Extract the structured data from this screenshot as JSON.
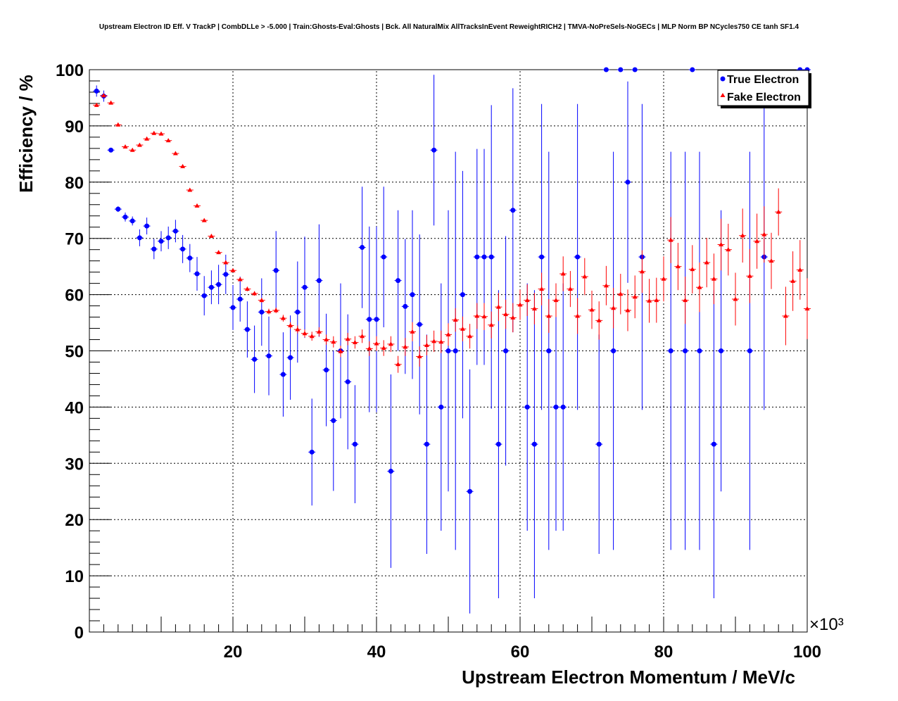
{
  "chart_data": {
    "type": "scatter",
    "title": "Upstream Electron ID Eff. V TrackP | CombDLLe > -5.000 | Train:Ghosts-Eval:Ghosts | Bck. All NaturalMix AllTracksInEvent ReweightRICH2 | TMVA-NoPreSels-NoGECs | MLP Norm BP NCycles750 CE tanh SF1.4",
    "xlabel": "Upstream Electron Momentum / MeV/c",
    "ylabel": "Efficiency / %",
    "x_multiplier_label": "×10³",
    "xlim": [
      0,
      100
    ],
    "ylim": [
      0,
      100
    ],
    "x_ticks": [
      20,
      40,
      60,
      80,
      100
    ],
    "y_ticks": [
      0,
      10,
      20,
      30,
      40,
      50,
      60,
      70,
      80,
      90,
      100
    ],
    "grid": true,
    "legend_position": "top-right",
    "colors": {
      "true_electron": "#0000ff",
      "fake_electron": "#ff0000"
    },
    "series": [
      {
        "name": "True Electron",
        "marker": "circle",
        "points": [
          [
            1,
            96.2,
            1
          ],
          [
            2,
            95.3,
            1
          ],
          [
            3,
            85.7,
            0
          ],
          [
            4,
            75.2,
            0.5
          ],
          [
            5,
            73.8,
            0.8
          ],
          [
            6,
            73.1,
            0.8
          ],
          [
            7,
            70.1,
            1.5
          ],
          [
            8,
            72.2,
            1.5
          ],
          [
            9,
            68.1,
            1.8
          ],
          [
            10,
            69.5,
            1.8
          ],
          [
            11,
            70.1,
            2
          ],
          [
            12,
            71.3,
            2
          ],
          [
            13,
            68.1,
            2.5
          ],
          [
            14,
            66.5,
            2.5
          ],
          [
            15,
            63.7,
            3
          ],
          [
            16,
            59.8,
            3.5
          ],
          [
            17,
            61.3,
            3
          ],
          [
            18,
            61.8,
            3.5
          ],
          [
            19,
            63.6,
            3.5
          ],
          [
            20,
            57.7,
            4
          ],
          [
            21,
            59.2,
            4
          ],
          [
            22,
            53.8,
            5
          ],
          [
            23,
            48.5,
            6
          ],
          [
            24,
            56.9,
            6
          ],
          [
            25,
            49.1,
            7
          ],
          [
            26,
            64.3,
            7
          ],
          [
            27,
            45.8,
            7.5
          ],
          [
            28,
            48.8,
            7.5
          ],
          [
            29,
            56.9,
            9
          ],
          [
            30,
            61.3,
            9
          ],
          [
            31,
            32.0,
            9.5
          ],
          [
            32,
            62.5,
            10
          ],
          [
            33,
            46.6,
            10
          ],
          [
            34,
            37.6,
            12.5
          ],
          [
            35,
            50.0,
            12
          ],
          [
            36,
            44.5,
            12
          ],
          [
            37,
            33.4,
            10.5
          ],
          [
            38,
            68.4,
            10.8
          ],
          [
            39,
            55.6,
            16.5
          ],
          [
            40,
            55.6,
            16.5
          ],
          [
            41,
            66.7,
            12.5
          ],
          [
            42,
            28.6,
            17.2
          ],
          [
            43,
            62.5,
            12.5
          ],
          [
            44,
            57.9,
            12
          ],
          [
            45,
            60.0,
            15
          ],
          [
            46,
            54.7,
            16
          ],
          [
            47,
            33.4,
            19.5
          ],
          [
            48,
            85.7,
            13.4
          ],
          [
            49,
            40.0,
            22
          ],
          [
            50,
            50.0,
            25
          ],
          [
            51,
            50.0,
            35.4
          ],
          [
            52,
            60.0,
            22
          ],
          [
            53,
            25.0,
            21.7
          ],
          [
            54,
            66.7,
            19.2
          ],
          [
            55,
            66.7,
            19.2
          ],
          [
            56,
            66.7,
            27
          ],
          [
            57,
            33.4,
            27.4
          ],
          [
            58,
            50.0,
            20.4
          ],
          [
            59,
            75.0,
            21.7
          ],
          [
            61,
            40.0,
            22
          ],
          [
            62,
            33.4,
            27.4
          ],
          [
            63,
            66.7,
            27.2
          ],
          [
            64,
            50.0,
            35.4
          ],
          [
            65,
            40.0,
            22
          ],
          [
            66,
            40.0,
            22
          ],
          [
            68,
            66.7,
            27.2
          ],
          [
            71,
            33.4,
            19.5
          ],
          [
            72,
            100,
            0
          ],
          [
            73,
            50.0,
            35.4
          ],
          [
            74,
            100,
            0
          ],
          [
            75,
            80.0,
            17.9
          ],
          [
            76,
            100,
            0
          ],
          [
            77,
            66.7,
            27.2
          ],
          [
            81,
            50.0,
            35.4
          ],
          [
            83,
            50.0,
            35.4
          ],
          [
            84,
            100,
            0
          ],
          [
            85,
            50.0,
            35.4
          ],
          [
            87,
            33.4,
            27.4
          ],
          [
            88,
            50.0,
            25
          ],
          [
            92,
            50.0,
            35.4
          ],
          [
            94,
            66.7,
            27.2
          ],
          [
            99,
            100,
            0
          ],
          [
            100,
            100,
            0
          ]
        ]
      },
      {
        "name": "Fake Electron",
        "marker": "triangle",
        "points": [
          [
            1,
            93.7,
            0.3
          ],
          [
            2,
            95.4,
            0.3
          ],
          [
            3,
            94.1,
            0.3
          ],
          [
            4,
            90.2,
            0.3
          ],
          [
            5,
            86.3,
            0.3
          ],
          [
            6,
            85.7,
            0.3
          ],
          [
            7,
            86.6,
            0.3
          ],
          [
            8,
            87.7,
            0.3
          ],
          [
            9,
            88.7,
            0.3
          ],
          [
            10,
            88.6,
            0.3
          ],
          [
            11,
            87.4,
            0.3
          ],
          [
            12,
            85.1,
            0.3
          ],
          [
            13,
            82.8,
            0.3
          ],
          [
            14,
            78.6,
            0.3
          ],
          [
            15,
            75.8,
            0.3
          ],
          [
            16,
            73.2,
            0.3
          ],
          [
            17,
            70.4,
            0.3
          ],
          [
            18,
            67.5,
            0.3
          ],
          [
            19,
            65.7,
            0.3
          ],
          [
            20,
            64.3,
            0.3
          ],
          [
            21,
            62.7,
            0.3
          ],
          [
            22,
            61.0,
            0.4
          ],
          [
            23,
            60.2,
            0.4
          ],
          [
            24,
            59.0,
            0.4
          ],
          [
            25,
            57.0,
            0.5
          ],
          [
            26,
            57.2,
            0.5
          ],
          [
            27,
            55.8,
            0.6
          ],
          [
            28,
            54.5,
            0.6
          ],
          [
            29,
            53.8,
            0.7
          ],
          [
            30,
            53.1,
            0.7
          ],
          [
            31,
            52.6,
            0.8
          ],
          [
            32,
            53.4,
            0.8
          ],
          [
            33,
            52.0,
            0.9
          ],
          [
            34,
            51.6,
            1
          ],
          [
            35,
            49.9,
            1
          ],
          [
            36,
            52.1,
            1.1
          ],
          [
            37,
            51.5,
            1.1
          ],
          [
            38,
            52.6,
            1.2
          ],
          [
            39,
            50.4,
            1.3
          ],
          [
            40,
            51.3,
            1.3
          ],
          [
            41,
            50.5,
            1.4
          ],
          [
            42,
            51.2,
            1.4
          ],
          [
            43,
            47.6,
            1.5
          ],
          [
            44,
            50.7,
            1.6
          ],
          [
            45,
            53.4,
            1.7
          ],
          [
            46,
            49.0,
            1.8
          ],
          [
            47,
            51.0,
            1.8
          ],
          [
            48,
            51.7,
            1.9
          ],
          [
            49,
            51.6,
            2
          ],
          [
            50,
            52.9,
            2
          ],
          [
            51,
            55.5,
            2.1
          ],
          [
            52,
            53.9,
            2.2
          ],
          [
            53,
            52.6,
            2.2
          ],
          [
            54,
            56.2,
            2.3
          ],
          [
            55,
            56.1,
            2.4
          ],
          [
            56,
            54.6,
            2.4
          ],
          [
            57,
            57.8,
            2.5
          ],
          [
            58,
            56.5,
            2.6
          ],
          [
            59,
            55.9,
            2.6
          ],
          [
            60,
            58.2,
            2.7
          ],
          [
            61,
            59.0,
            2.8
          ],
          [
            62,
            57.5,
            2.8
          ],
          [
            63,
            61.0,
            2.9
          ],
          [
            64,
            56.2,
            3
          ],
          [
            65,
            59.0,
            3
          ],
          [
            66,
            63.7,
            3.1
          ],
          [
            67,
            61.0,
            3.2
          ],
          [
            68,
            56.2,
            3.2
          ],
          [
            69,
            63.2,
            3.3
          ],
          [
            70,
            57.3,
            3.4
          ],
          [
            71,
            55.4,
            3.4
          ],
          [
            72,
            61.6,
            3.5
          ],
          [
            73,
            57.6,
            3.6
          ],
          [
            74,
            60.1,
            3.6
          ],
          [
            75,
            57.2,
            3.7
          ],
          [
            76,
            59.6,
            3.8
          ],
          [
            77,
            64.1,
            3.8
          ],
          [
            78,
            58.9,
            3.9
          ],
          [
            79,
            59.0,
            4
          ],
          [
            80,
            62.8,
            4
          ],
          [
            81,
            69.7,
            4.1
          ],
          [
            82,
            65.0,
            4.2
          ],
          [
            83,
            59.0,
            4.2
          ],
          [
            84,
            64.5,
            4.3
          ],
          [
            85,
            61.3,
            4.4
          ],
          [
            86,
            65.7,
            4.4
          ],
          [
            87,
            62.8,
            4.5
          ],
          [
            88,
            68.9,
            4.6
          ],
          [
            89,
            68.0,
            4.6
          ],
          [
            90,
            59.2,
            4.7
          ],
          [
            91,
            70.5,
            4.8
          ],
          [
            92,
            63.3,
            4.8
          ],
          [
            93,
            69.5,
            4.9
          ],
          [
            94,
            70.7,
            5
          ],
          [
            95,
            66.0,
            5
          ],
          [
            96,
            74.7,
            4.2
          ],
          [
            97,
            56.2,
            5.2
          ],
          [
            98,
            62.4,
            5.3
          ],
          [
            99,
            64.4,
            5.3
          ],
          [
            100,
            57.5,
            5.4
          ]
        ]
      }
    ]
  }
}
